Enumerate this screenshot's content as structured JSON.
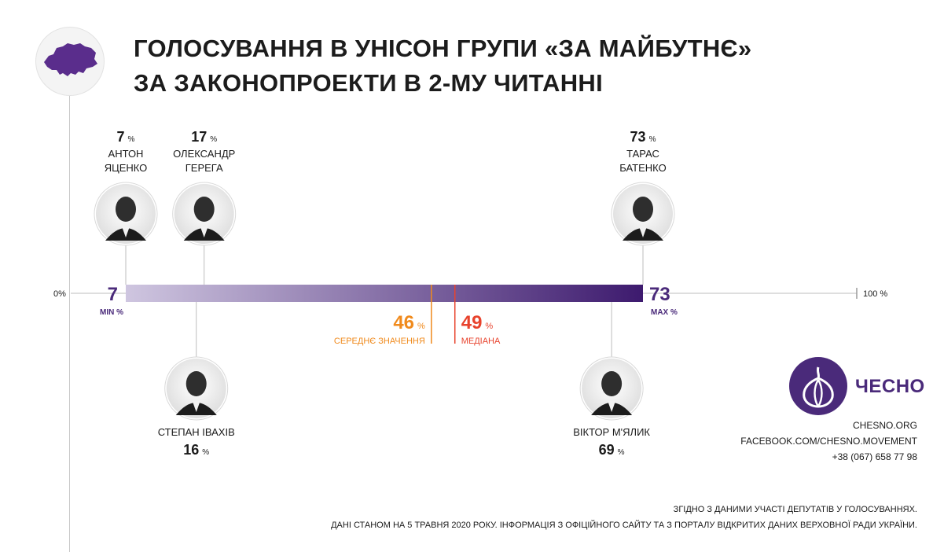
{
  "title": {
    "line1": "ГОЛОСУВАННЯ В УНІСОН ГРУПИ «ЗА МАЙБУТНЄ»",
    "line2": "ЗА ЗАКОНОПРОЕКТИ В 2-МУ ЧИТАННІ"
  },
  "chart_data": {
    "type": "range",
    "axis_min_label": "0%",
    "axis_max_label": "100 %",
    "xlim": [
      0,
      100
    ],
    "min": {
      "value": 7,
      "label": "7",
      "caption": "MIN %"
    },
    "max": {
      "value": 73,
      "label": "73",
      "caption": "MAX %"
    },
    "mean": {
      "value": 46,
      "label": "46",
      "unit": "%",
      "caption": "СЕРЕДНЄ ЗНАЧЕННЯ"
    },
    "median": {
      "value": 49,
      "label": "49",
      "unit": "%",
      "caption": "МЕДІАНА"
    },
    "people": [
      {
        "value": 7,
        "pct": "7",
        "unit": "%",
        "name1": "АНТОН",
        "name2": "ЯЦЕНКО",
        "position": "above"
      },
      {
        "value": 17,
        "pct": "17",
        "unit": "%",
        "name1": "ОЛЕКСАНДР",
        "name2": "ГЕРЕГА",
        "position": "above"
      },
      {
        "value": 73,
        "pct": "73",
        "unit": "%",
        "name1": "ТАРАС",
        "name2": "БАТЕНКО",
        "position": "above"
      },
      {
        "value": 16,
        "pct": "16",
        "unit": "%",
        "name1": "СТЕПАН ІВАХІВ",
        "name2": "",
        "position": "below"
      },
      {
        "value": 69,
        "pct": "69",
        "unit": "%",
        "name1": "ВІКТОР М'ЯЛИК",
        "name2": "",
        "position": "below"
      }
    ],
    "colors": {
      "bar_start": "#cfc6e0",
      "bar_end": "#3d1a6e",
      "mean": "#f08a1c",
      "median": "#e8432d",
      "accent": "#4a2a7a"
    }
  },
  "logo": {
    "text": "ЧЕСНО"
  },
  "contacts": {
    "site": "CHESNO.ORG",
    "facebook": "FACEBOOK.COM/CHESNO.MOVEMENT",
    "phone": "+38 (067) 658 77 98"
  },
  "footer": {
    "line1": "ЗГІДНО З ДАНИМИ УЧАСТІ ДЕПУТАТІВ У ГОЛОСУВАННЯХ.",
    "line2": "ДАНІ СТАНОМ НА 5 ТРАВНЯ 2020 РОКУ. ІНФОРМАЦІЯ З ОФІЦІЙНОГО САЙТУ ТА З ПОРТАЛУ ВІДКРИТИХ ДАНИХ ВЕРХОВНОЇ РАДИ УКРАЇНИ."
  }
}
